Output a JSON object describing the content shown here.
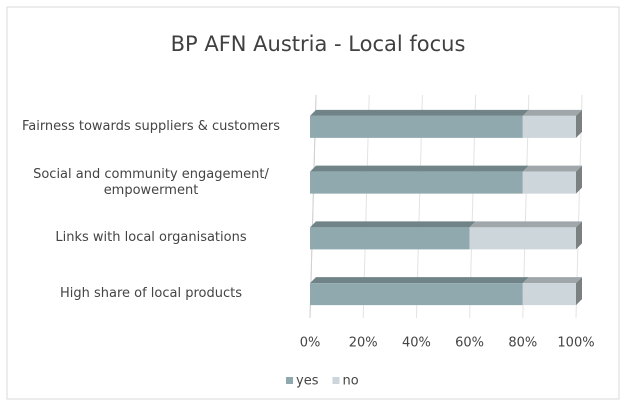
{
  "chart_data": {
    "type": "bar3d_stacked_horizontal",
    "title": "BP AFN Austria - Local focus",
    "categories": [
      "Fairness towards suppliers & customers",
      "Social and community engagement/ empowerment",
      "Links with local organisations",
      "High share of local products"
    ],
    "series": [
      {
        "name": "yes",
        "color": "#8fa9ae",
        "values": [
          80,
          80,
          60,
          80
        ]
      },
      {
        "name": "no",
        "color": "#cdd6da",
        "values": [
          20,
          20,
          40,
          20
        ]
      }
    ],
    "xlim": [
      0,
      100
    ],
    "xticks": [
      {
        "value": 0,
        "label": "0%"
      },
      {
        "value": 20,
        "label": "20%"
      },
      {
        "value": 40,
        "label": "40%"
      },
      {
        "value": 60,
        "label": "60%"
      },
      {
        "value": 80,
        "label": "80%"
      },
      {
        "value": 100,
        "label": "100%"
      }
    ],
    "grid": true,
    "legend": "bottom"
  }
}
